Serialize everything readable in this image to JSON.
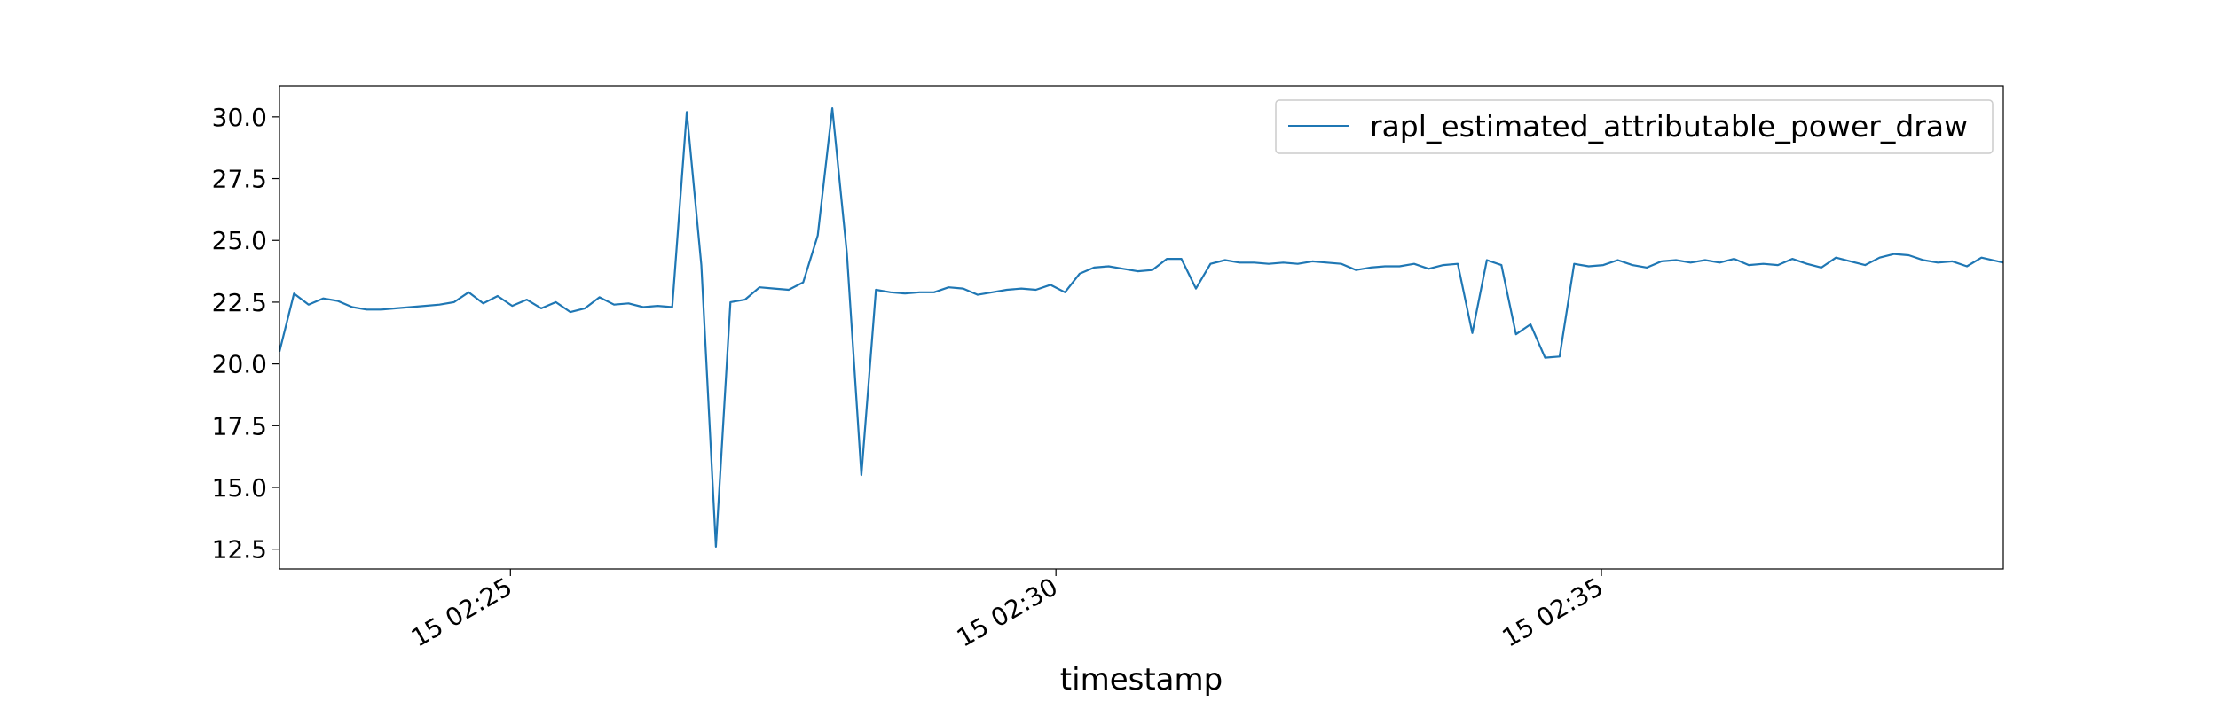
{
  "chart_data": {
    "type": "line",
    "title": "",
    "xlabel": "timestamp",
    "ylabel": "",
    "x_start": "02:22:53",
    "x_end": "02:38:41",
    "x_ticks": [
      {
        "time": "02:25:00",
        "label": "15 02:25"
      },
      {
        "time": "02:30:00",
        "label": "15 02:30"
      },
      {
        "time": "02:35:00",
        "label": "15 02:35"
      }
    ],
    "ylim": [
      11.7,
      31.25
    ],
    "y_ticks": [
      12.5,
      15.0,
      17.5,
      20.0,
      22.5,
      25.0,
      27.5,
      30.0
    ],
    "y_tick_labels": [
      "12.5",
      "15.0",
      "17.5",
      "20.0",
      "22.5",
      "25.0",
      "27.5",
      "30.0"
    ],
    "grid": false,
    "legend": {
      "placement": "top-right",
      "entries": [
        "rapl_estimated_attributable_power_draw"
      ]
    },
    "series": [
      {
        "name": "rapl_estimated_attributable_power_draw",
        "color": "#1f77b4",
        "points": [
          [
            "02:22:53",
            20.5
          ],
          [
            "02:23:01",
            22.85
          ],
          [
            "02:23:09",
            22.4
          ],
          [
            "02:23:17",
            22.65
          ],
          [
            "02:23:25",
            22.55
          ],
          [
            "02:23:33",
            22.3
          ],
          [
            "02:23:41",
            22.2
          ],
          [
            "02:23:49",
            22.2
          ],
          [
            "02:23:57",
            22.25
          ],
          [
            "02:24:05",
            22.3
          ],
          [
            "02:24:13",
            22.35
          ],
          [
            "02:24:21",
            22.4
          ],
          [
            "02:24:29",
            22.5
          ],
          [
            "02:24:37",
            22.9
          ],
          [
            "02:24:45",
            22.45
          ],
          [
            "02:24:53",
            22.75
          ],
          [
            "02:25:01",
            22.35
          ],
          [
            "02:25:09",
            22.6
          ],
          [
            "02:25:17",
            22.25
          ],
          [
            "02:25:25",
            22.5
          ],
          [
            "02:25:33",
            22.1
          ],
          [
            "02:25:41",
            22.25
          ],
          [
            "02:25:49",
            22.7
          ],
          [
            "02:25:57",
            22.4
          ],
          [
            "02:26:05",
            22.45
          ],
          [
            "02:26:13",
            22.3
          ],
          [
            "02:26:21",
            22.35
          ],
          [
            "02:26:29",
            22.3
          ],
          [
            "02:26:37",
            30.2
          ],
          [
            "02:26:45",
            24.0
          ],
          [
            "02:26:53",
            12.6
          ],
          [
            "02:27:01",
            22.5
          ],
          [
            "02:27:09",
            22.6
          ],
          [
            "02:27:17",
            23.1
          ],
          [
            "02:27:25",
            23.05
          ],
          [
            "02:27:33",
            23.0
          ],
          [
            "02:27:41",
            23.3
          ],
          [
            "02:27:49",
            25.2
          ],
          [
            "02:27:57",
            30.35
          ],
          [
            "02:28:05",
            24.5
          ],
          [
            "02:28:13",
            15.5
          ],
          [
            "02:28:21",
            23.0
          ],
          [
            "02:28:29",
            22.9
          ],
          [
            "02:28:37",
            22.85
          ],
          [
            "02:28:45",
            22.9
          ],
          [
            "02:28:53",
            22.9
          ],
          [
            "02:29:01",
            23.1
          ],
          [
            "02:29:09",
            23.05
          ],
          [
            "02:29:17",
            22.8
          ],
          [
            "02:29:25",
            22.9
          ],
          [
            "02:29:33",
            23.0
          ],
          [
            "02:29:41",
            23.05
          ],
          [
            "02:29:49",
            23.0
          ],
          [
            "02:29:57",
            23.2
          ],
          [
            "02:30:05",
            22.9
          ],
          [
            "02:30:13",
            23.65
          ],
          [
            "02:30:21",
            23.9
          ],
          [
            "02:30:29",
            23.95
          ],
          [
            "02:30:37",
            23.85
          ],
          [
            "02:30:45",
            23.75
          ],
          [
            "02:30:53",
            23.8
          ],
          [
            "02:31:01",
            24.25
          ],
          [
            "02:31:09",
            24.25
          ],
          [
            "02:31:17",
            23.05
          ],
          [
            "02:31:25",
            24.05
          ],
          [
            "02:31:33",
            24.2
          ],
          [
            "02:31:41",
            24.1
          ],
          [
            "02:31:49",
            24.1
          ],
          [
            "02:31:57",
            24.05
          ],
          [
            "02:32:05",
            24.1
          ],
          [
            "02:32:13",
            24.05
          ],
          [
            "02:32:21",
            24.15
          ],
          [
            "02:32:29",
            24.1
          ],
          [
            "02:32:37",
            24.05
          ],
          [
            "02:32:45",
            23.8
          ],
          [
            "02:32:53",
            23.9
          ],
          [
            "02:33:01",
            23.95
          ],
          [
            "02:33:09",
            23.95
          ],
          [
            "02:33:17",
            24.05
          ],
          [
            "02:33:25",
            23.85
          ],
          [
            "02:33:33",
            24.0
          ],
          [
            "02:33:41",
            24.05
          ],
          [
            "02:33:49",
            21.25
          ],
          [
            "02:33:57",
            24.2
          ],
          [
            "02:34:05",
            24.0
          ],
          [
            "02:34:13",
            21.2
          ],
          [
            "02:34:21",
            21.6
          ],
          [
            "02:34:29",
            20.25
          ],
          [
            "02:34:37",
            20.3
          ],
          [
            "02:34:45",
            24.05
          ],
          [
            "02:34:53",
            23.95
          ],
          [
            "02:35:01",
            24.0
          ],
          [
            "02:35:09",
            24.2
          ],
          [
            "02:35:17",
            24.0
          ],
          [
            "02:35:25",
            23.9
          ],
          [
            "02:35:33",
            24.15
          ],
          [
            "02:35:41",
            24.2
          ],
          [
            "02:35:49",
            24.1
          ],
          [
            "02:35:57",
            24.2
          ],
          [
            "02:36:05",
            24.1
          ],
          [
            "02:36:13",
            24.25
          ],
          [
            "02:36:21",
            24.0
          ],
          [
            "02:36:29",
            24.05
          ],
          [
            "02:36:37",
            24.0
          ],
          [
            "02:36:45",
            24.25
          ],
          [
            "02:36:53",
            24.05
          ],
          [
            "02:37:01",
            23.9
          ],
          [
            "02:37:09",
            24.3
          ],
          [
            "02:37:17",
            24.15
          ],
          [
            "02:37:25",
            24.0
          ],
          [
            "02:37:33",
            24.3
          ],
          [
            "02:37:41",
            24.45
          ],
          [
            "02:37:49",
            24.4
          ],
          [
            "02:37:57",
            24.2
          ],
          [
            "02:38:05",
            24.1
          ],
          [
            "02:38:13",
            24.15
          ],
          [
            "02:38:21",
            23.95
          ],
          [
            "02:38:29",
            24.3
          ],
          [
            "02:38:41",
            24.1
          ]
        ]
      }
    ]
  }
}
